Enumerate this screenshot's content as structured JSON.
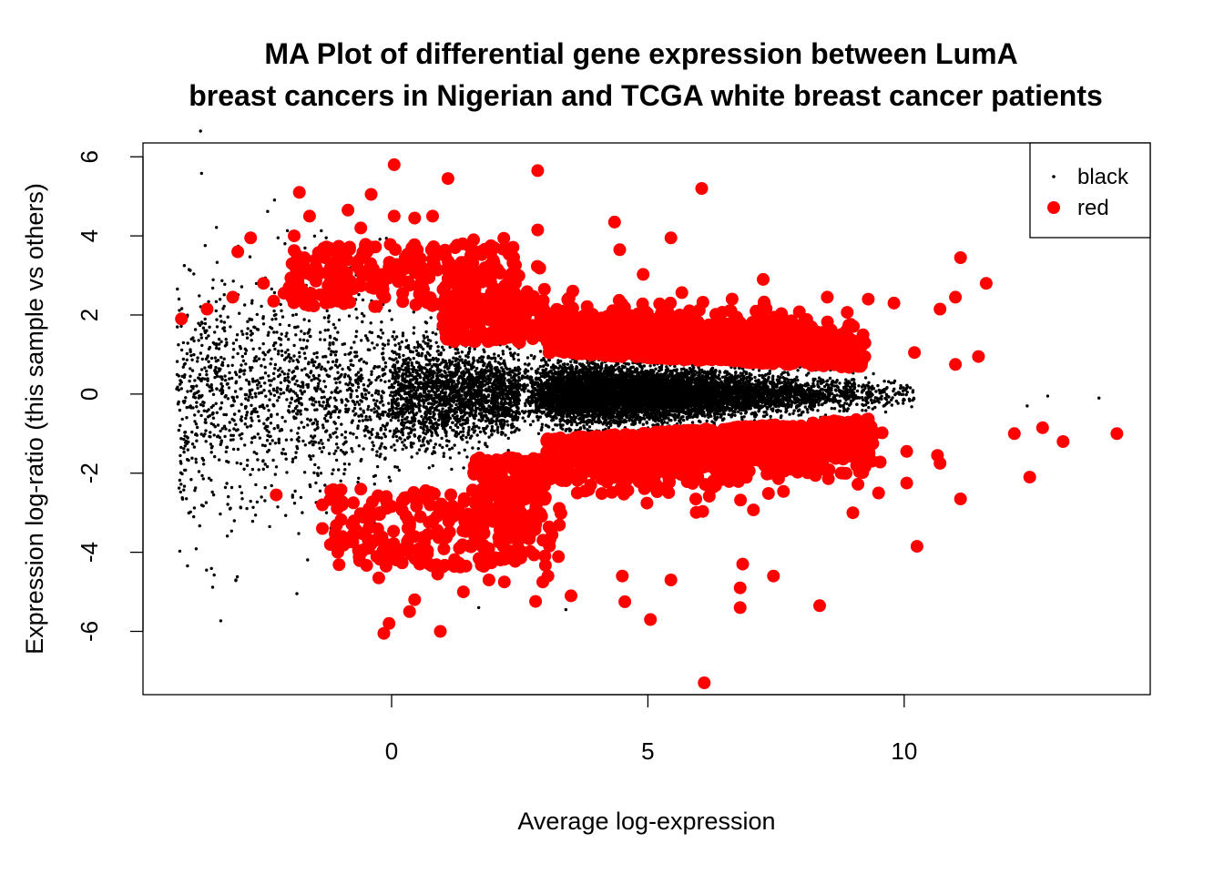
{
  "chart_data": {
    "type": "scatter",
    "title_line1": "MA Plot of differential gene expression between LumA",
    "title_line2": "breast cancers in Nigerian and TCGA white breast cancer patients",
    "xlabel": "Average log-expression",
    "ylabel": "Expression log-ratio (this sample vs others)",
    "xlim": [
      -4.85,
      14.8
    ],
    "ylim": [
      -7.6,
      6.35
    ],
    "x_ticks": [
      0,
      5,
      10
    ],
    "y_ticks": [
      -6,
      -4,
      -2,
      0,
      2,
      4,
      6
    ],
    "legend": {
      "position": "top-right",
      "entries": [
        "black",
        "red"
      ]
    },
    "series": [
      {
        "name": "black",
        "color": "#000000",
        "marker": "small-dot",
        "approx_count": 12000,
        "note_points": [
          [
            -4.1,
            0.3
          ],
          [
            -3.5,
            0.1
          ],
          [
            -3.0,
            -0.9
          ],
          [
            -2.5,
            -1.9
          ],
          [
            -2.0,
            0.6
          ],
          [
            12.4,
            -0.3
          ],
          [
            12.8,
            -0.05
          ],
          [
            13.8,
            -0.1
          ],
          [
            3.4,
            -5.45
          ],
          [
            1.7,
            -5.4
          ]
        ]
      },
      {
        "name": "red",
        "color": "#ff0000",
        "marker": "filled-circle",
        "outliers": [
          [
            -4.1,
            1.9
          ],
          [
            -3.6,
            2.15
          ],
          [
            -3.1,
            2.45
          ],
          [
            -3.0,
            3.6
          ],
          [
            -2.75,
            3.95
          ],
          [
            -2.5,
            2.8
          ],
          [
            -2.3,
            2.35
          ],
          [
            -2.1,
            2.55
          ],
          [
            -1.9,
            4.0
          ],
          [
            -1.8,
            5.1
          ],
          [
            -1.6,
            4.5
          ],
          [
            -1.3,
            3.45
          ],
          [
            -1.0,
            3.2
          ],
          [
            -0.85,
            4.65
          ],
          [
            -0.6,
            4.2
          ],
          [
            -0.4,
            5.05
          ],
          [
            0.05,
            5.8
          ],
          [
            0.05,
            4.5
          ],
          [
            0.45,
            4.45
          ],
          [
            0.8,
            4.5
          ],
          [
            1.1,
            5.45
          ],
          [
            1.6,
            3.9
          ],
          [
            2.0,
            3.7
          ],
          [
            2.85,
            5.65
          ],
          [
            2.85,
            4.15
          ],
          [
            4.35,
            4.35
          ],
          [
            4.45,
            3.65
          ],
          [
            5.45,
            3.95
          ],
          [
            6.05,
            5.2
          ],
          [
            7.25,
            2.9
          ],
          [
            8.5,
            2.45
          ],
          [
            9.3,
            2.4
          ],
          [
            9.8,
            2.3
          ],
          [
            10.7,
            2.15
          ],
          [
            11.0,
            2.45
          ],
          [
            11.1,
            3.45
          ],
          [
            11.6,
            2.8
          ],
          [
            11.45,
            0.95
          ],
          [
            11.0,
            0.75
          ],
          [
            10.2,
            1.05
          ],
          [
            -2.25,
            -2.55
          ],
          [
            -1.35,
            -3.4
          ],
          [
            -1.35,
            -2.8
          ],
          [
            -1.05,
            -4.0
          ],
          [
            -0.75,
            -3.55
          ],
          [
            -0.45,
            -3.9
          ],
          [
            -0.25,
            -4.65
          ],
          [
            -0.15,
            -6.05
          ],
          [
            -0.05,
            -5.8
          ],
          [
            0.35,
            -5.5
          ],
          [
            0.45,
            -5.2
          ],
          [
            0.95,
            -6.0
          ],
          [
            0.55,
            -4.3
          ],
          [
            0.9,
            -4.55
          ],
          [
            1.4,
            -5.0
          ],
          [
            1.9,
            -4.7
          ],
          [
            2.2,
            -4.75
          ],
          [
            2.95,
            -4.75
          ],
          [
            3.05,
            -4.6
          ],
          [
            3.5,
            -5.1
          ],
          [
            4.5,
            -4.6
          ],
          [
            4.55,
            -5.25
          ],
          [
            5.05,
            -5.7
          ],
          [
            5.45,
            -4.7
          ],
          [
            6.1,
            -7.3
          ],
          [
            6.8,
            -5.4
          ],
          [
            6.8,
            -4.9
          ],
          [
            6.85,
            -4.3
          ],
          [
            7.45,
            -4.6
          ],
          [
            8.35,
            -5.35
          ],
          [
            9.0,
            -3.0
          ],
          [
            9.5,
            -2.5
          ],
          [
            10.05,
            -2.25
          ],
          [
            10.25,
            -3.85
          ],
          [
            10.7,
            -1.75
          ],
          [
            11.1,
            -2.65
          ],
          [
            12.15,
            -1.0
          ],
          [
            12.45,
            -2.1
          ],
          [
            12.7,
            -0.85
          ],
          [
            13.1,
            -1.2
          ],
          [
            14.15,
            -1.0
          ],
          [
            10.65,
            -1.55
          ],
          [
            10.05,
            -1.45
          ]
        ]
      }
    ]
  }
}
